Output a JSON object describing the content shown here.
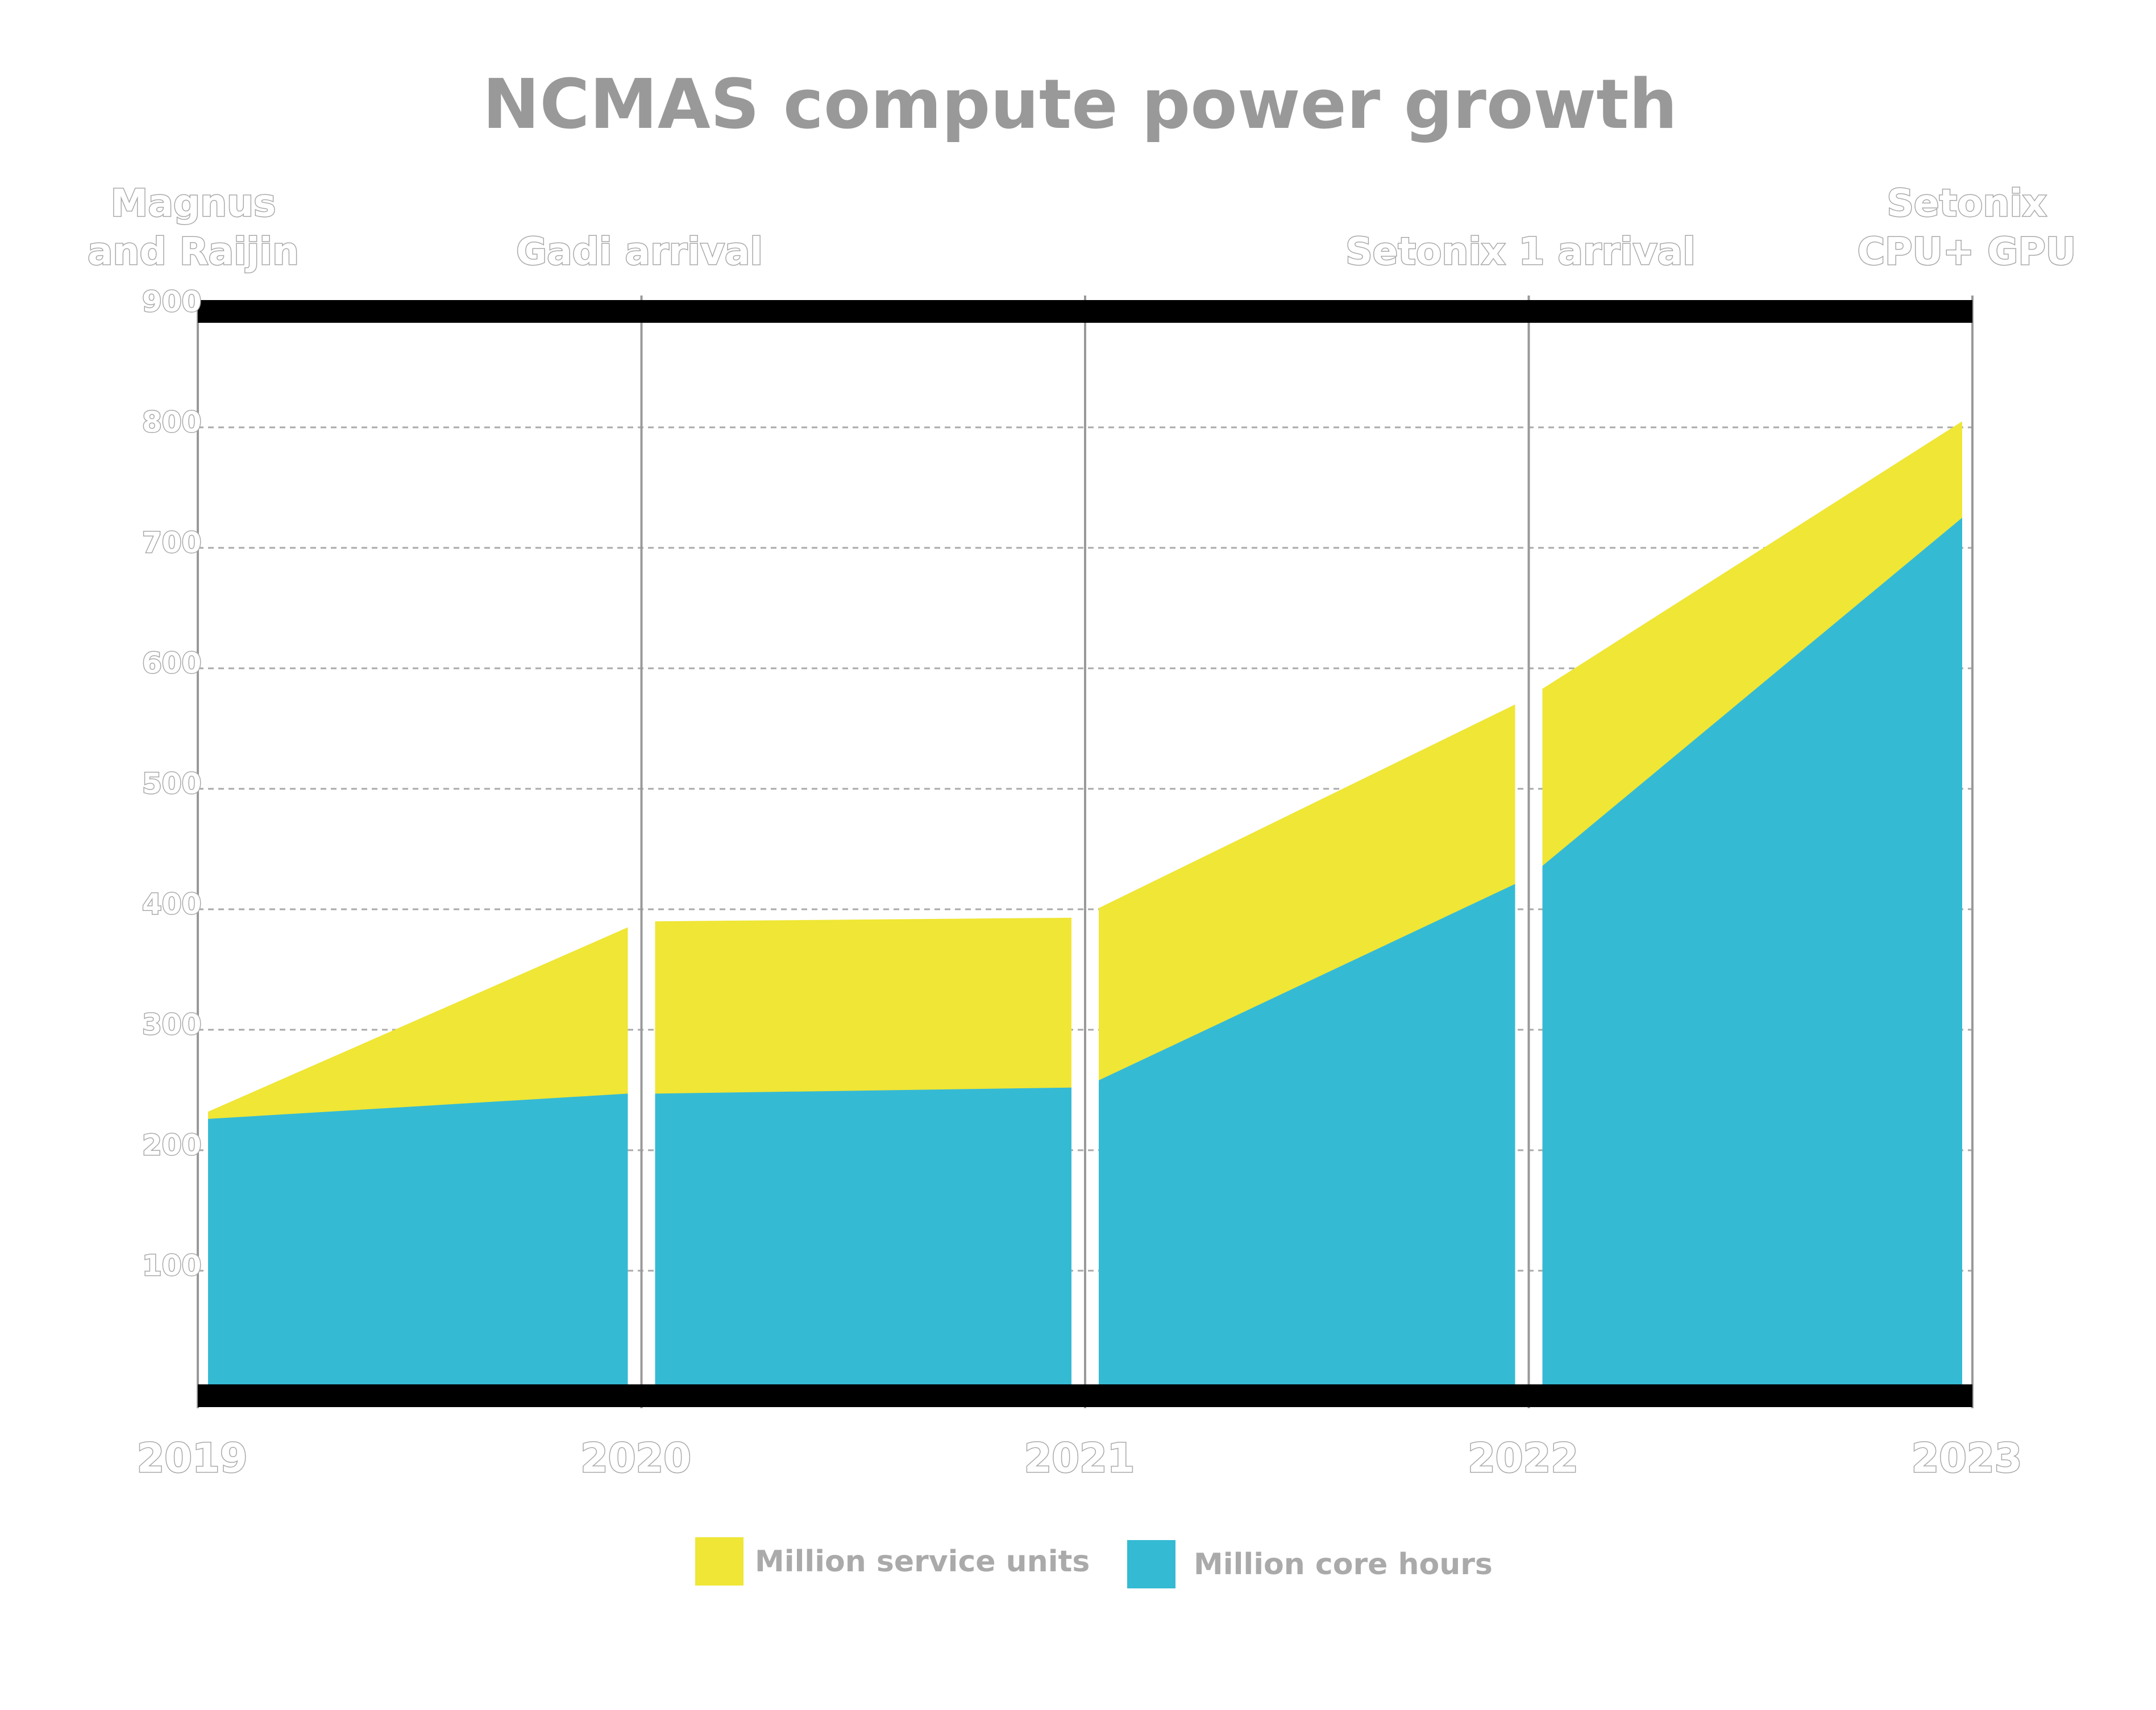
{
  "chart_data": {
    "type": "area",
    "title": "NCMAS compute power growth",
    "xlabel": "",
    "ylabel": "",
    "x_ticks": [
      "2019",
      "2020",
      "2021",
      "2022",
      "2023"
    ],
    "y_ticks": [
      "100",
      "200",
      "300",
      "400",
      "500",
      "600",
      "700",
      "800",
      "900"
    ],
    "ylim": [
      0,
      900
    ],
    "xlim": [
      2019,
      2023
    ],
    "grid": "horizontal-dashed",
    "legend_position": "bottom",
    "events": [
      {
        "label_lines": [
          "Magnus",
          "and Raijin"
        ],
        "x": 2019
      },
      {
        "label_lines": [
          "Gadi arrival"
        ],
        "x": 2020
      },
      {
        "label_lines": [
          "Setonix 1 arrival"
        ],
        "x": 2022
      },
      {
        "label_lines": [
          "Setonix",
          "CPU+ GPU"
        ],
        "x": 2023
      }
    ],
    "segments": [
      {
        "x": [
          2019,
          2020
        ],
        "service_units": [
          232,
          385
        ],
        "core_hours": [
          226,
          247
        ]
      },
      {
        "x": [
          2020,
          2021
        ],
        "service_units": [
          390,
          393
        ],
        "core_hours": [
          247,
          252
        ]
      },
      {
        "x": [
          2021,
          2022
        ],
        "service_units": [
          401,
          570
        ],
        "core_hours": [
          258,
          421
        ]
      },
      {
        "x": [
          2022,
          2023
        ],
        "service_units": [
          583,
          805
        ],
        "core_hours": [
          436,
          725
        ]
      }
    ],
    "series": [
      {
        "name": "Million service units",
        "color": "#EFE636"
      },
      {
        "name": "Million core hours",
        "color": "#35BAD4"
      }
    ]
  }
}
